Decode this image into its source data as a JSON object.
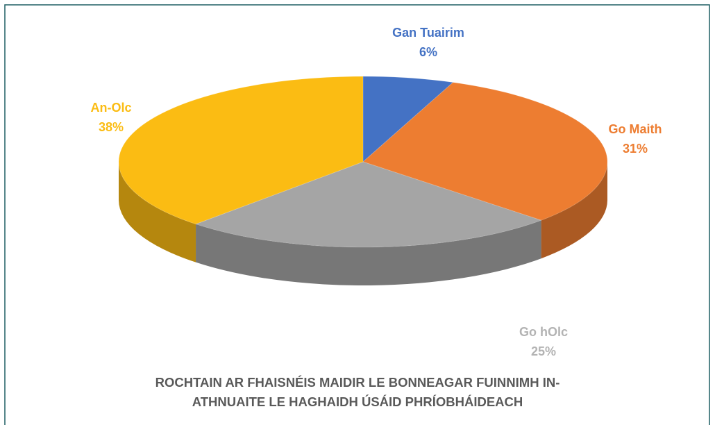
{
  "chart_data": {
    "type": "pie",
    "title": "ROCHTAIN AR FHAISNÉIS MAIDIR LE BONNEAGAR FUINNIMH IN-ATHNUAITE LE HAGHAIDH ÚSÁID PHRÍOBHÁIDEACH",
    "categories": [
      "Gan Tuairim",
      "Go Maith",
      "Go hOlc",
      "An-Olc"
    ],
    "values": [
      6,
      31,
      25,
      38
    ],
    "value_labels": [
      "6%",
      "31%",
      "25%",
      "38%"
    ],
    "colors": [
      "#4472c4",
      "#ed7d31",
      "#a5a5a5",
      "#fbbc13"
    ]
  }
}
